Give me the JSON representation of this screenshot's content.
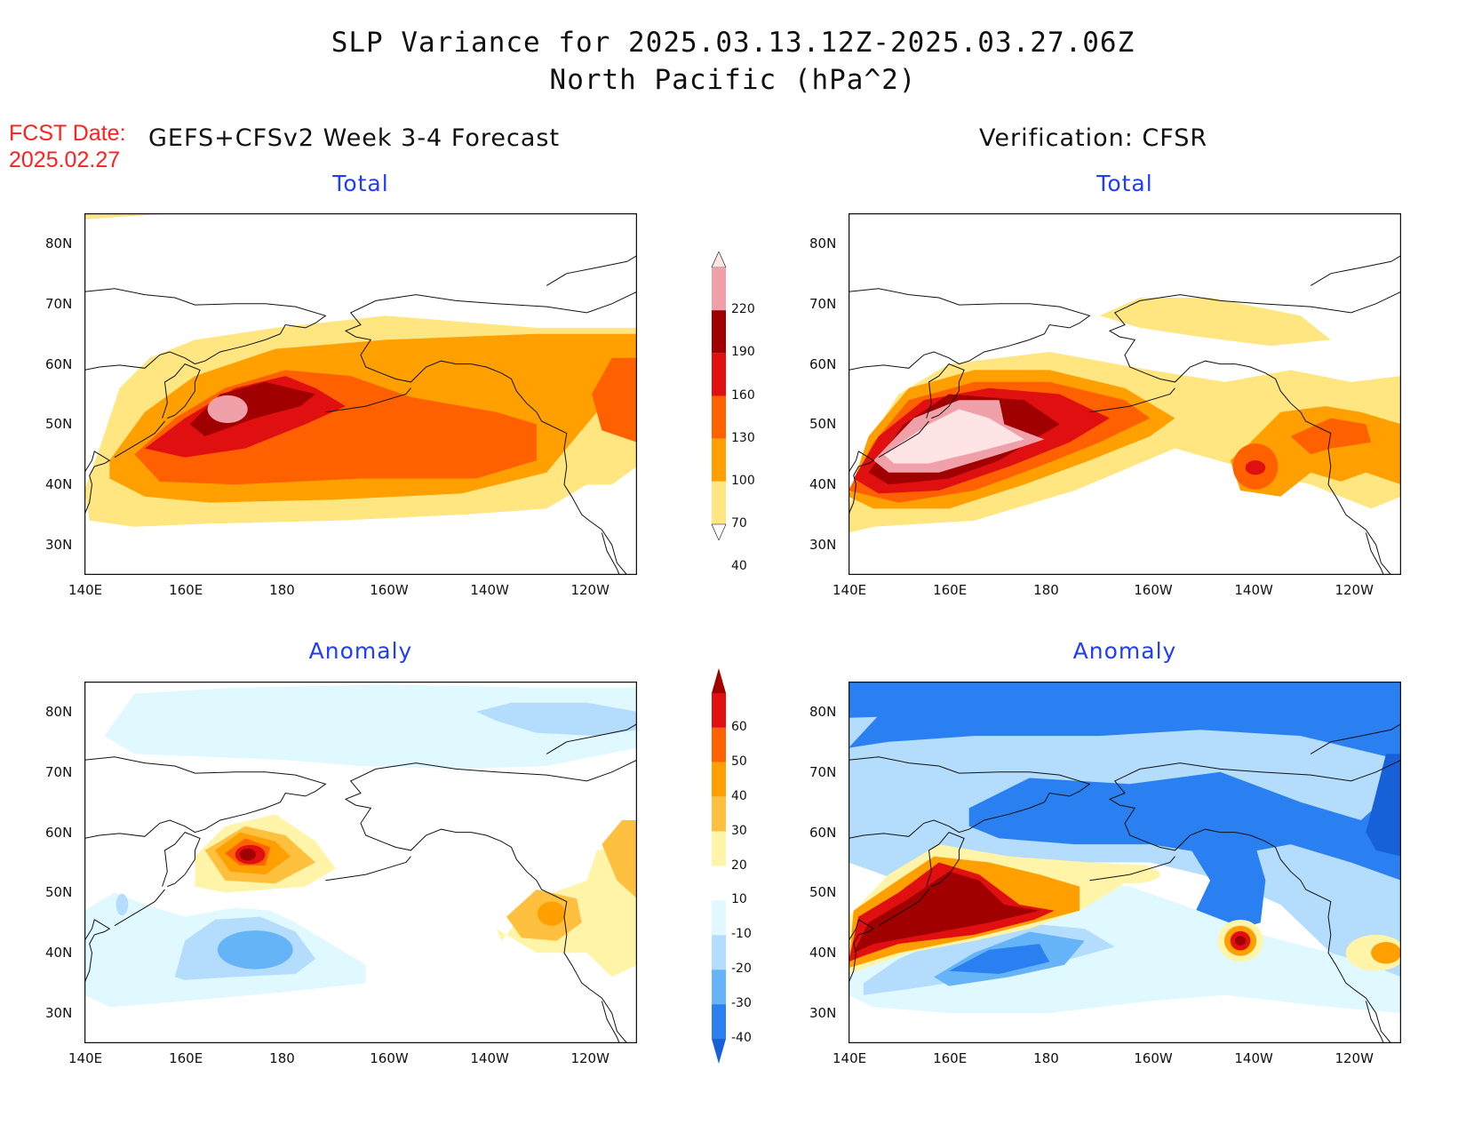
{
  "title_line1": "SLP Variance for 2025.03.13.12Z-2025.03.27.06Z",
  "title_line2": "North Pacific (hPa^2)",
  "fcst_label": "FCST Date:",
  "fcst_date": "2025.02.27",
  "left_header": "GEFS+CFSv2 Week 3-4 Forecast",
  "right_header": "Verification: CFSR",
  "panels": [
    {
      "id": "fcst-total",
      "subtitle": "Total",
      "field": "total"
    },
    {
      "id": "cfsr-total",
      "subtitle": "Total",
      "field": "total"
    },
    {
      "id": "fcst-anomaly",
      "subtitle": "Anomaly",
      "field": "anomaly"
    },
    {
      "id": "cfsr-anomaly",
      "subtitle": "Anomaly",
      "field": "anomaly"
    }
  ],
  "axes": {
    "lat_labels": [
      "80N",
      "70N",
      "60N",
      "50N",
      "40N",
      "30N"
    ],
    "lat_values": [
      80,
      70,
      60,
      50,
      40,
      30
    ],
    "lon_labels": [
      "140E",
      "160E",
      "180",
      "160W",
      "140W",
      "120W"
    ],
    "lon_values": [
      140,
      160,
      180,
      200,
      220,
      240
    ],
    "lon_range": [
      140,
      250
    ],
    "lat_range": [
      25,
      85
    ]
  },
  "total_colorbar": {
    "levels": [
      "40",
      "70",
      "100",
      "130",
      "160",
      "190",
      "220"
    ],
    "colors": [
      "#ffffff",
      "#ffe680",
      "#ffa000",
      "#ff6000",
      "#e01010",
      "#a00000",
      "#f0a0a8",
      "#ffe4e6"
    ]
  },
  "anomaly_colorbar": {
    "levels": [
      "-40",
      "-30",
      "-20",
      "-10",
      "10",
      "20",
      "30",
      "40",
      "50",
      "60"
    ],
    "colors": [
      "#1660d8",
      "#2a80f0",
      "#66b4f8",
      "#b4dcfc",
      "#e0f8ff",
      "#ffffff",
      "#fff4a8",
      "#ffc040",
      "#ffa000",
      "#ff6000",
      "#e01010",
      "#a00000"
    ]
  }
}
